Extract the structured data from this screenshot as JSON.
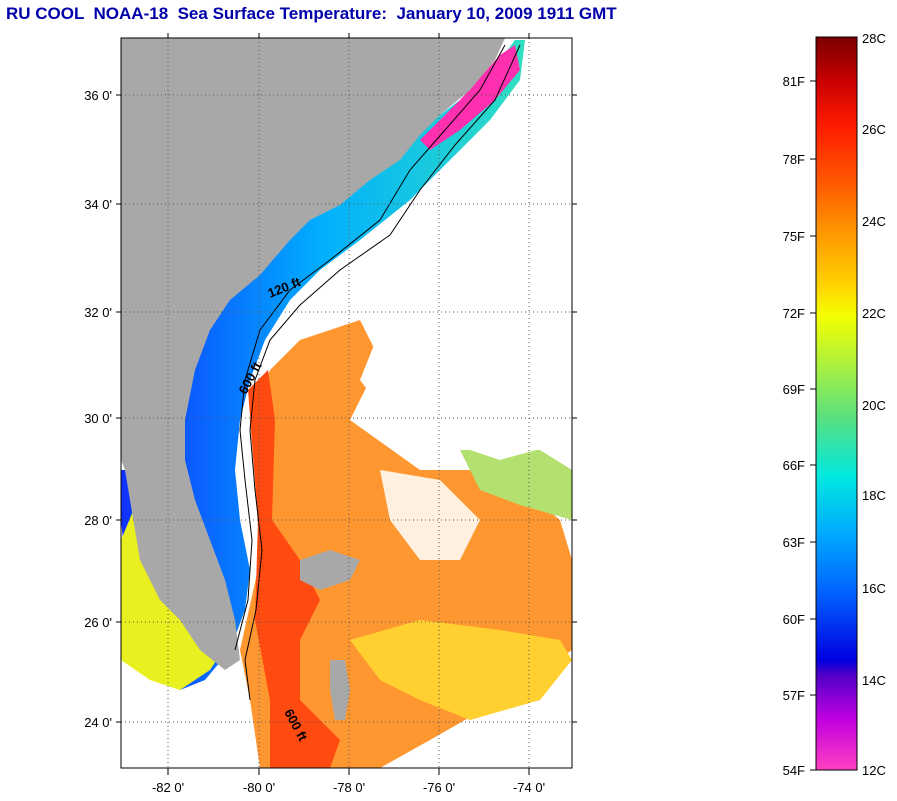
{
  "title": "RU COOL  NOAA-18  Sea Surface Temperature:  January 10, 2009 1911 GMT",
  "map": {
    "lat_labels": [
      "36 0'",
      "34 0'",
      "32 0'",
      "30 0'",
      "28 0'",
      "26 0'",
      "24 0'"
    ],
    "lon_labels": [
      "-82 0'",
      "-80 0'",
      "-78 0'",
      "-76 0'",
      "-74 0'"
    ],
    "contour_labels": [
      "120 ft",
      "600 ft",
      "600 ft"
    ],
    "colors": {
      "land": "#a8a8a8",
      "grid": "#555555"
    }
  },
  "colorbar": {
    "fahrenheit_labels": [
      "81F",
      "78F",
      "75F",
      "72F",
      "69F",
      "66F",
      "63F",
      "60F",
      "57F",
      "54F"
    ],
    "celsius_labels": [
      "28C",
      "26C",
      "24C",
      "22C",
      "20C",
      "18C",
      "16C",
      "14C",
      "12C"
    ]
  }
}
